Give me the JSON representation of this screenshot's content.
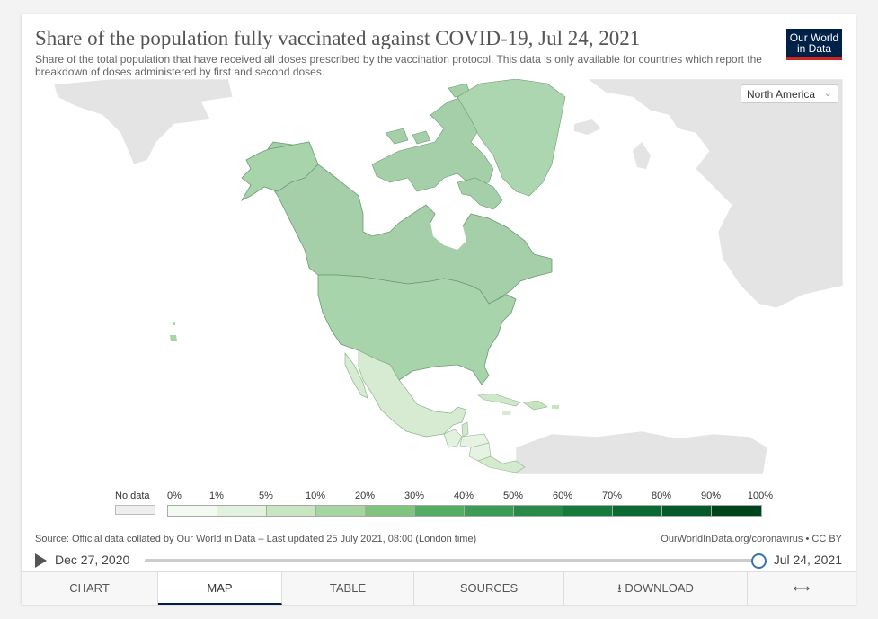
{
  "header": {
    "title": "Share of the population fully vaccinated against COVID-19, Jul 24, 2021",
    "subtitle": "Share of the total population that have received all doses prescribed by the vaccination protocol. This data is only available for countries which report the breakdown of doses administered by first and second doses.",
    "logo_line1": "Our World",
    "logo_line2": "in Data"
  },
  "region_selector": {
    "value": "North America"
  },
  "map_data": {
    "region": "North America",
    "countries": [
      {
        "name": "Canada",
        "bin": "50%-60%",
        "color": "#a4cfa8"
      },
      {
        "name": "United States",
        "bin": "40%-50%",
        "color": "#a8d4ac"
      },
      {
        "name": "Greenland",
        "bin": "40%-50%",
        "color": "#abd6af"
      },
      {
        "name": "Mexico",
        "bin": "10%-20%",
        "color": "#d6ebd2"
      },
      {
        "name": "Cuba",
        "bin": "10%-20%",
        "color": "#cfe8ca"
      },
      {
        "name": "Dominican Republic",
        "bin": "20%-30%",
        "color": "#c6e4c0"
      },
      {
        "name": "Guatemala",
        "bin": "1%-5%",
        "color": "#e3f2df"
      },
      {
        "name": "Belize",
        "bin": "5%-10%",
        "color": "#cfe8ca"
      },
      {
        "name": "Honduras",
        "bin": "1%-5%",
        "color": "#e6f3e2"
      },
      {
        "name": "El Salvador",
        "bin": "20%-30%",
        "color": "#c2e2bc"
      },
      {
        "name": "Nicaragua",
        "bin": "1%-5%",
        "color": "#e6f3e2"
      },
      {
        "name": "Costa Rica",
        "bin": "10%-20%",
        "color": "#d3eacd"
      },
      {
        "name": "Panama",
        "bin": "10%-20%",
        "color": "#d3eacd"
      }
    ]
  },
  "legend": {
    "no_data_label": "No data",
    "ticks": [
      "0%",
      "1%",
      "5%",
      "10%",
      "20%",
      "30%",
      "40%",
      "50%",
      "60%",
      "70%",
      "80%",
      "90%",
      "100%"
    ],
    "colors": [
      "#f3faf1",
      "#e3f2df",
      "#c9e6c3",
      "#a6d6a0",
      "#7fc37c",
      "#55ad63",
      "#3a9c55",
      "#278a48",
      "#167a3d",
      "#0b6a33",
      "#045a28",
      "#00441b"
    ]
  },
  "footer": {
    "source": "Source: Official data collated by Our World in Data – Last updated 25 July 2021, 08:00 (London time)",
    "url": "OurWorldInData.org/coronavirus • CC BY"
  },
  "timeline": {
    "start": "Dec 27, 2020",
    "end": "Jul 24, 2021"
  },
  "tabs": [
    "CHART",
    "MAP",
    "TABLE",
    "SOURCES",
    "DOWNLOAD",
    ""
  ]
}
